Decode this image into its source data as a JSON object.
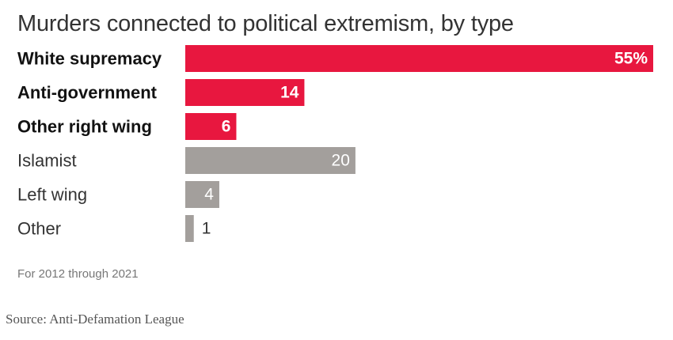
{
  "chart_data": {
    "type": "bar",
    "orientation": "horizontal",
    "title": "Murders connected to political extremism, by type",
    "categories": [
      "White supremacy",
      "Anti-government",
      "Other right wing",
      "Islamist",
      "Left wing",
      "Other"
    ],
    "values": [
      55,
      14,
      6,
      20,
      4,
      1
    ],
    "value_labels": [
      "55%",
      "14",
      "6",
      "20",
      "4",
      "1"
    ],
    "groups": [
      "right-wing",
      "right-wing",
      "right-wing",
      "other",
      "other",
      "other"
    ],
    "xlim": [
      0,
      55
    ],
    "xlabel": "",
    "ylabel": "",
    "grid": false,
    "unit": "percent",
    "colors": {
      "right-wing": "#e8173f",
      "other": "#a39f9c",
      "label_on_red": "#ffffff",
      "label_on_gray": "#ffffff",
      "label_outside": "#333333",
      "category_bold": "#121212",
      "category_regular": "#333333"
    }
  },
  "note": "For 2012 through 2021",
  "source": "Source: Anti-Defamation League"
}
